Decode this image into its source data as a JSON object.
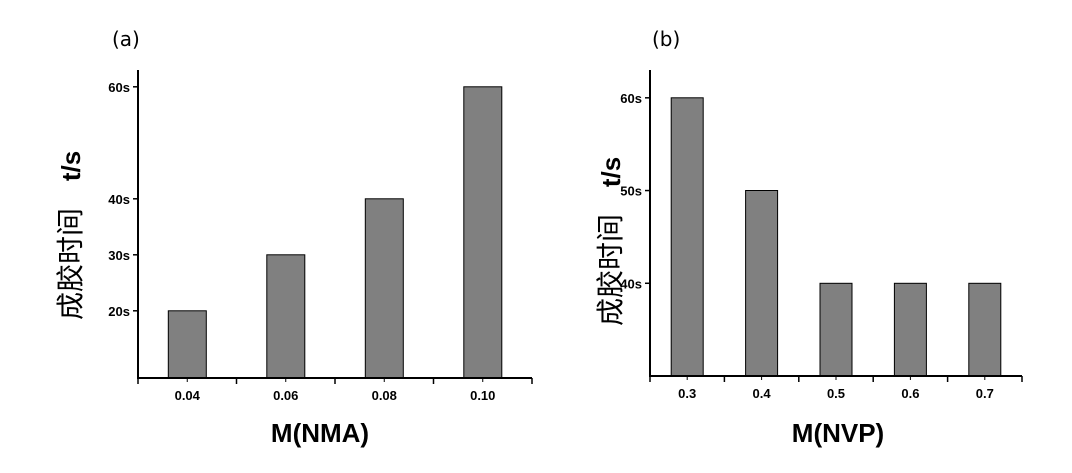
{
  "chart_data": [
    {
      "panel_label": "(a)",
      "type": "bar",
      "categories": [
        "0.04",
        "0.06",
        "0.08",
        "0.10"
      ],
      "values": [
        20,
        30,
        40,
        60
      ],
      "ylim": [
        8,
        63
      ],
      "yticks": [
        20,
        30,
        40,
        60
      ],
      "ytick_labels": [
        "20s",
        "30s",
        "40s",
        "60s"
      ],
      "xlabel": "M(NMA)",
      "ylabel": "成胶时间",
      "ylabel_unit": "t/s",
      "bar_color": "#808080"
    },
    {
      "panel_label": "(b)",
      "type": "bar",
      "categories": [
        "0.3",
        "0.4",
        "0.5",
        "0.6",
        "0.7"
      ],
      "values": [
        60,
        50,
        40,
        40,
        40
      ],
      "ylim": [
        30,
        63
      ],
      "yticks": [
        40,
        50,
        60
      ],
      "ytick_labels": [
        "40s",
        "50s",
        "60s"
      ],
      "xlabel": "M(NVP)",
      "ylabel": "成胶时间",
      "ylabel_unit": "t/s",
      "bar_color": "#808080"
    }
  ]
}
